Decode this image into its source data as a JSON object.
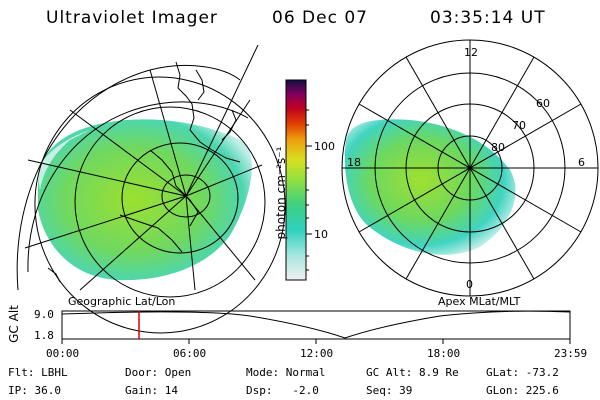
{
  "header": {
    "instrument": "Ultraviolet Imager",
    "date": "06 Dec 07",
    "time": "03:35:14 UT"
  },
  "colorbar": {
    "unit_label": "photon cm⁻²s⁻¹",
    "tick_100": "100",
    "tick_10": "10"
  },
  "left_map": {
    "caption": "Geographic Lat/Lon"
  },
  "right_map": {
    "caption": "Apex MLat/MLT",
    "mlt_labels": {
      "top": "12",
      "left": "18",
      "right": "6",
      "bottom": "0"
    },
    "lat_labels": {
      "l60": "60",
      "l70": "70",
      "l80": "80"
    }
  },
  "altitude_plot": {
    "ylabel": "GC Alt",
    "y_top": "9.0",
    "y_bottom": "1.8",
    "x_ticks": [
      "00:00",
      "06:00",
      "12:00",
      "18:00",
      "23:59"
    ],
    "marker_color": "#e00000"
  },
  "info": {
    "filter": "Flt: LBHL",
    "ip": "IP: 36.0",
    "door": "Door: Open",
    "gain": "Gain: 14",
    "mode": "Mode: Normal",
    "dsp": "Dsp:   -2.0",
    "gc_alt": "GC Alt: 8.9 Re",
    "seq": "Seq: 39",
    "glat": "GLat: -73.2",
    "glon": "GLon: 225.6"
  }
}
